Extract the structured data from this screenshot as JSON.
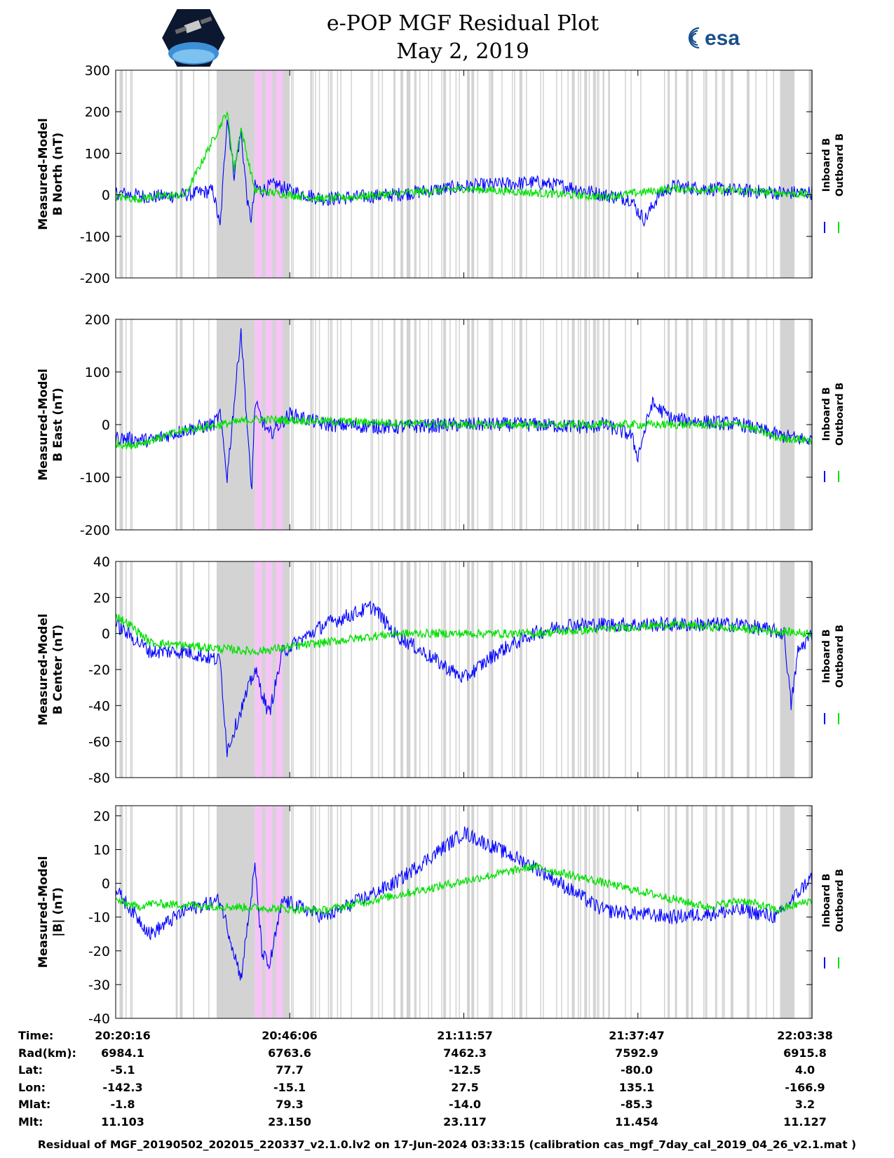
{
  "header": {
    "title": "e-POP MGF Residual Plot",
    "date": "May 2, 2019",
    "esa_logo_text": "esa"
  },
  "colors": {
    "inboard": "#0000ff",
    "outboard": "#00e000",
    "gray_band": "#d3d3d3",
    "pink_band": "#f7c4f7"
  },
  "legend": {
    "inboard": "Inboard B",
    "outboard": "Outboard B"
  },
  "chart_data": [
    {
      "type": "line",
      "ylabel": [
        "Measured-Model",
        "B North (nT)"
      ],
      "ylim": [
        -200,
        300
      ],
      "yticks": [
        300,
        200,
        100,
        0,
        -100,
        -200
      ],
      "xlim": [
        0,
        1
      ],
      "series": [
        {
          "name": "Inboard B",
          "x": [
            0,
            0.05,
            0.1,
            0.14,
            0.15,
            0.16,
            0.17,
            0.18,
            0.19,
            0.195,
            0.2,
            0.21,
            0.22,
            0.23,
            0.25,
            0.3,
            0.4,
            0.5,
            0.6,
            0.65,
            0.7,
            0.74,
            0.75,
            0.76,
            0.78,
            0.8,
            0.85,
            0.9,
            0.95,
            1.0
          ],
          "y": [
            5,
            -5,
            0,
            10,
            -80,
            190,
            50,
            150,
            -30,
            -60,
            20,
            10,
            20,
            25,
            10,
            -10,
            0,
            20,
            30,
            20,
            0,
            -10,
            -40,
            -60,
            0,
            20,
            15,
            10,
            5,
            5
          ]
        },
        {
          "name": "Outboard B",
          "x": [
            0,
            0.03,
            0.05,
            0.1,
            0.16,
            0.17,
            0.18,
            0.2,
            0.3,
            0.5,
            0.7,
            0.8,
            0.9,
            1.0
          ],
          "y": [
            -5,
            -10,
            -5,
            0,
            200,
            60,
            160,
            10,
            -10,
            15,
            -5,
            15,
            10,
            0
          ]
        }
      ]
    },
    {
      "type": "line",
      "ylabel": [
        "Measured-Model",
        "B East (nT)"
      ],
      "ylim": [
        -200,
        200
      ],
      "yticks": [
        200,
        100,
        0,
        -100,
        -200
      ],
      "xlim": [
        0,
        1
      ],
      "series": [
        {
          "name": "Inboard B",
          "x": [
            0,
            0.05,
            0.1,
            0.14,
            0.15,
            0.16,
            0.18,
            0.195,
            0.2,
            0.22,
            0.25,
            0.3,
            0.4,
            0.5,
            0.6,
            0.68,
            0.7,
            0.74,
            0.75,
            0.77,
            0.8,
            0.9,
            0.95,
            1.0
          ],
          "y": [
            -25,
            -30,
            -10,
            0,
            20,
            -100,
            180,
            -130,
            40,
            -20,
            20,
            0,
            -5,
            0,
            0,
            -5,
            0,
            -20,
            -60,
            40,
            10,
            0,
            -20,
            -30
          ]
        },
        {
          "name": "Outboard B",
          "x": [
            0,
            0.02,
            0.05,
            0.1,
            0.2,
            0.5,
            0.9,
            0.95,
            1.0
          ],
          "y": [
            -35,
            -40,
            -30,
            -10,
            10,
            0,
            0,
            -25,
            -30
          ]
        }
      ]
    },
    {
      "type": "line",
      "ylabel": [
        "Measured-Model",
        "B Center (nT)"
      ],
      "ylim": [
        -80,
        40
      ],
      "yticks": [
        40,
        20,
        0,
        -20,
        -40,
        -60,
        -80
      ],
      "xlim": [
        0,
        1
      ],
      "series": [
        {
          "name": "Inboard B",
          "x": [
            0,
            0.05,
            0.1,
            0.15,
            0.16,
            0.2,
            0.22,
            0.24,
            0.3,
            0.37,
            0.4,
            0.5,
            0.55,
            0.6,
            0.65,
            0.74,
            0.8,
            0.9,
            0.96,
            0.97,
            0.98,
            1.0
          ],
          "y": [
            5,
            -10,
            -10,
            -15,
            -65,
            -20,
            -45,
            -10,
            5,
            15,
            0,
            -25,
            -10,
            0,
            5,
            5,
            5,
            5,
            0,
            -40,
            -10,
            0
          ]
        },
        {
          "name": "Outboard B",
          "x": [
            0,
            0.02,
            0.05,
            0.2,
            0.4,
            0.6,
            0.8,
            1.0
          ],
          "y": [
            10,
            5,
            -5,
            -10,
            0,
            0,
            5,
            0
          ]
        }
      ]
    },
    {
      "type": "line",
      "ylabel": [
        "Measured-Model",
        "|B| (nT)"
      ],
      "ylim": [
        -40,
        23
      ],
      "yticks": [
        20,
        10,
        0,
        -10,
        -20,
        -30,
        -40
      ],
      "xlim": [
        0,
        1
      ],
      "series": [
        {
          "name": "Inboard B",
          "x": [
            0,
            0.05,
            0.1,
            0.15,
            0.18,
            0.2,
            0.21,
            0.22,
            0.24,
            0.3,
            0.4,
            0.5,
            0.6,
            0.7,
            0.8,
            0.9,
            0.95,
            1.0
          ],
          "y": [
            -2,
            -15,
            -8,
            -5,
            -28,
            5,
            -20,
            -25,
            -5,
            -10,
            0,
            15,
            5,
            -8,
            -10,
            -8,
            -10,
            2
          ]
        },
        {
          "name": "Outboard B",
          "x": [
            0,
            0.03,
            0.05,
            0.3,
            0.6,
            0.85,
            0.9,
            0.95,
            1.0
          ],
          "y": [
            -5,
            -7,
            -6,
            -8,
            5,
            -7,
            -5,
            -8,
            -5
          ]
        }
      ]
    }
  ],
  "time_axis": {
    "rows": [
      {
        "label": "Time:",
        "values": [
          "20:20:16",
          "20:46:06",
          "21:11:57",
          "21:37:47",
          "22:03:38"
        ]
      },
      {
        "label": "Rad(km):",
        "values": [
          "6984.1",
          "6763.6",
          "7462.3",
          "7592.9",
          "6915.8"
        ]
      },
      {
        "label": "Lat:",
        "values": [
          "-5.1",
          "77.7",
          "-12.5",
          "-80.0",
          "4.0"
        ]
      },
      {
        "label": "Lon:",
        "values": [
          "-142.3",
          "-15.1",
          "27.5",
          "135.1",
          "-166.9"
        ]
      },
      {
        "label": "Mlat:",
        "values": [
          "-1.8",
          "79.3",
          "-14.0",
          "-85.3",
          "3.2"
        ]
      },
      {
        "label": "Mlt:",
        "values": [
          "11.103",
          "23.150",
          "23.117",
          "11.454",
          "11.127"
        ]
      }
    ]
  },
  "footer": "Residual of MGF_20190502_202015_220337_v2.1.0.lv2 on 17-Jun-2024 03:33:15 (calibration cas_mgf_7day_cal_2019_04_26_v2.1.mat )"
}
